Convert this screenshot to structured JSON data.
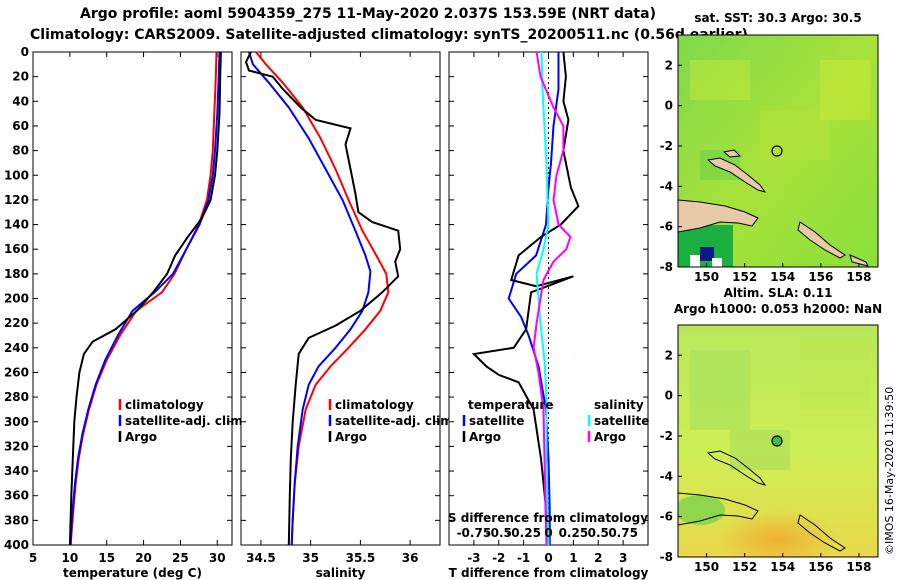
{
  "header": {
    "line1": "Argo profile: aoml 5904359_275 11-May-2020 2.037S 153.59E (NRT data)",
    "line2": "Climatology: CARS2009. Satellite-adjusted climatology: synTS_20200511.nc (0.56d earlier)"
  },
  "colors": {
    "climatology": "#ff0000",
    "satellite": "#0000ff",
    "argo": "#000000",
    "t_satellite": "#0000ff",
    "s_satellite": "#00ffff",
    "s_argo": "#ff00ff"
  },
  "chart_data": [
    {
      "type": "line",
      "id": "temperature",
      "xlabel": "temperature (deg C)",
      "ylabel": "",
      "xlim": [
        5,
        32
      ],
      "ylim": [
        400,
        0
      ],
      "xticks": [
        "5",
        "10",
        "15",
        "20",
        "25",
        "30"
      ],
      "xtick_values": [
        5,
        10,
        15,
        20,
        25,
        30
      ],
      "yticks": [
        "0",
        "20",
        "40",
        "60",
        "80",
        "100",
        "120",
        "140",
        "160",
        "180",
        "200",
        "220",
        "240",
        "260",
        "280",
        "300",
        "320",
        "340",
        "360",
        "380",
        "400"
      ],
      "ytick_values": [
        0,
        20,
        40,
        60,
        80,
        100,
        120,
        140,
        160,
        180,
        200,
        220,
        240,
        260,
        280,
        300,
        320,
        340,
        360,
        380,
        400
      ],
      "legend": [
        "climatology",
        "satellite-adj. clim.",
        "Argo"
      ],
      "series": [
        {
          "name": "climatology",
          "color": "#ff0000",
          "points": [
            [
              29.9,
              0
            ],
            [
              29.8,
              20
            ],
            [
              29.6,
              50
            ],
            [
              29.4,
              80
            ],
            [
              29.1,
              100
            ],
            [
              28.6,
              120
            ],
            [
              27.5,
              140
            ],
            [
              25.8,
              160
            ],
            [
              24.2,
              180
            ],
            [
              22.5,
              195
            ],
            [
              19,
              210
            ],
            [
              16.8,
              230
            ],
            [
              15,
              250
            ],
            [
              13.6,
              270
            ],
            [
              12.6,
              290
            ],
            [
              11.8,
              310
            ],
            [
              11.2,
              330
            ],
            [
              10.8,
              350
            ],
            [
              10.5,
              370
            ],
            [
              10.3,
              385
            ],
            [
              10.1,
              400
            ]
          ]
        },
        {
          "name": "satellite-adj. clim.",
          "color": "#0000ff",
          "points": [
            [
              30.3,
              0
            ],
            [
              30.2,
              20
            ],
            [
              30,
              50
            ],
            [
              29.7,
              80
            ],
            [
              29.4,
              100
            ],
            [
              28.8,
              120
            ],
            [
              27.6,
              140
            ],
            [
              25.8,
              160
            ],
            [
              24,
              180
            ],
            [
              21.5,
              195
            ],
            [
              18.5,
              210
            ],
            [
              16.5,
              230
            ],
            [
              14.8,
              250
            ],
            [
              13.5,
              270
            ],
            [
              12.5,
              290
            ],
            [
              11.7,
              310
            ],
            [
              11.1,
              330
            ],
            [
              10.7,
              350
            ],
            [
              10.4,
              370
            ],
            [
              10.2,
              385
            ],
            [
              10.1,
              400
            ]
          ]
        },
        {
          "name": "Argo",
          "color": "#000000",
          "points": [
            [
              30.5,
              0
            ],
            [
              30.4,
              20
            ],
            [
              30.3,
              50
            ],
            [
              30,
              80
            ],
            [
              29.7,
              100
            ],
            [
              29.1,
              120
            ],
            [
              27.9,
              135
            ],
            [
              26,
              150
            ],
            [
              24.3,
              165
            ],
            [
              23.2,
              180
            ],
            [
              21.3,
              195
            ],
            [
              19.1,
              210
            ],
            [
              16.2,
              225
            ],
            [
              13.1,
              235
            ],
            [
              11.9,
              245
            ],
            [
              11.3,
              260
            ],
            [
              10.9,
              280
            ],
            [
              10.6,
              300
            ],
            [
              10.4,
              330
            ],
            [
              10.2,
              360
            ],
            [
              10.1,
              380
            ],
            [
              10,
              400
            ]
          ]
        }
      ]
    },
    {
      "type": "line",
      "id": "salinity",
      "xlabel": "salinity",
      "ylabel": "",
      "xlim": [
        34.3,
        36.3
      ],
      "ylim": [
        400,
        0
      ],
      "xticks": [
        "34.5",
        "35",
        "35.5",
        "36"
      ],
      "xtick_values": [
        34.5,
        35,
        35.5,
        36
      ],
      "legend": [
        "climatology",
        "satellite-adj. clim.",
        "Argo"
      ],
      "series": [
        {
          "name": "climatology",
          "color": "#ff0000",
          "points": [
            [
              34.45,
              0
            ],
            [
              34.55,
              10
            ],
            [
              34.72,
              25
            ],
            [
              34.92,
              45
            ],
            [
              35.1,
              70
            ],
            [
              35.25,
              95
            ],
            [
              35.38,
              120
            ],
            [
              35.52,
              145
            ],
            [
              35.66,
              165
            ],
            [
              35.76,
              180
            ],
            [
              35.78,
              195
            ],
            [
              35.7,
              210
            ],
            [
              35.55,
              225
            ],
            [
              35.38,
              240
            ],
            [
              35.2,
              255
            ],
            [
              35.05,
              270
            ],
            [
              34.95,
              290
            ],
            [
              34.88,
              320
            ],
            [
              34.84,
              350
            ],
            [
              34.82,
              380
            ],
            [
              34.81,
              400
            ]
          ]
        },
        {
          "name": "satellite-adj. clim.",
          "color": "#0000ff",
          "points": [
            [
              34.38,
              0
            ],
            [
              34.42,
              10
            ],
            [
              34.58,
              25
            ],
            [
              34.78,
              45
            ],
            [
              34.98,
              70
            ],
            [
              35.15,
              95
            ],
            [
              35.32,
              120
            ],
            [
              35.45,
              145
            ],
            [
              35.55,
              165
            ],
            [
              35.6,
              178
            ],
            [
              35.58,
              195
            ],
            [
              35.52,
              210
            ],
            [
              35.4,
              225
            ],
            [
              35.25,
              240
            ],
            [
              35.08,
              255
            ],
            [
              34.98,
              270
            ],
            [
              34.92,
              290
            ],
            [
              34.87,
              320
            ],
            [
              34.84,
              350
            ],
            [
              34.82,
              380
            ],
            [
              34.81,
              400
            ]
          ]
        },
        {
          "name": "Argo",
          "color": "#000000",
          "points": [
            [
              34.4,
              0
            ],
            [
              34.35,
              8
            ],
            [
              34.38,
              15
            ],
            [
              34.62,
              20
            ],
            [
              34.72,
              30
            ],
            [
              34.9,
              45
            ],
            [
              35.05,
              55
            ],
            [
              35.4,
              62
            ],
            [
              35.35,
              75
            ],
            [
              35.4,
              95
            ],
            [
              35.45,
              115
            ],
            [
              35.48,
              130
            ],
            [
              35.62,
              138
            ],
            [
              35.88,
              145
            ],
            [
              35.9,
              160
            ],
            [
              35.85,
              170
            ],
            [
              35.88,
              182
            ],
            [
              35.72,
              195
            ],
            [
              35.5,
              210
            ],
            [
              35.25,
              222
            ],
            [
              34.98,
              232
            ],
            [
              34.88,
              245
            ],
            [
              34.85,
              270
            ],
            [
              34.82,
              300
            ],
            [
              34.8,
              330
            ],
            [
              34.79,
              360
            ],
            [
              34.78,
              400
            ]
          ]
        }
      ]
    },
    {
      "type": "line",
      "id": "difference",
      "xlabel": "T difference from climatology",
      "xlabel2": "S difference from climatology",
      "xlim": [
        -4,
        4
      ],
      "ylim": [
        400,
        0
      ],
      "xticks": [
        "-3",
        "-2",
        "-1",
        "0",
        "1",
        "2",
        "3"
      ],
      "xtick_values": [
        -3,
        -2,
        -1,
        0,
        1,
        2,
        3
      ],
      "xticks_top": [
        "-0.75",
        "-0.5",
        "-0.25",
        "0",
        "0.25",
        "0.5",
        "0.75"
      ],
      "legend_left_title": "temperature",
      "legend_left": [
        "satellite",
        "Argo"
      ],
      "legend_right_title": "salinity",
      "legend_right": [
        "satellite",
        "Argo"
      ],
      "series": [
        {
          "name": "T satellite",
          "color": "#0000ff",
          "points": [
            [
              0.4,
              0
            ],
            [
              0.4,
              30
            ],
            [
              0.2,
              60
            ],
            [
              0.1,
              90
            ],
            [
              0,
              110
            ],
            [
              -0.1,
              140
            ],
            [
              -0.5,
              165
            ],
            [
              -1.3,
              180
            ],
            [
              -1.6,
              200
            ],
            [
              -1.1,
              215
            ],
            [
              -0.8,
              230
            ],
            [
              -0.4,
              255
            ],
            [
              -0.1,
              290
            ],
            [
              0,
              330
            ],
            [
              0.05,
              370
            ],
            [
              0.05,
              400
            ]
          ]
        },
        {
          "name": "T Argo",
          "color": "#000000",
          "points": [
            [
              0.6,
              0
            ],
            [
              0.7,
              20
            ],
            [
              0.6,
              40
            ],
            [
              0.8,
              55
            ],
            [
              0.6,
              80
            ],
            [
              0.8,
              100
            ],
            [
              0.9,
              110
            ],
            [
              1.2,
              125
            ],
            [
              0.5,
              140
            ],
            [
              -0.3,
              150
            ],
            [
              -1.2,
              165
            ],
            [
              -1.5,
              185
            ],
            [
              -0.5,
              190
            ],
            [
              1,
              182
            ],
            [
              -0.7,
              195
            ],
            [
              -0.9,
              225
            ],
            [
              -1.4,
              240
            ],
            [
              -3.0,
              245
            ],
            [
              -2.5,
              255
            ],
            [
              -2,
              262
            ],
            [
              -1.2,
              268
            ],
            [
              -0.6,
              290
            ],
            [
              -0.3,
              330
            ],
            [
              -0.1,
              370
            ],
            [
              0,
              400
            ]
          ]
        },
        {
          "name": "S satellite",
          "color": "#00ffff",
          "points": [
            [
              -0.07,
              0
            ],
            [
              -0.06,
              30
            ],
            [
              -0.04,
              60
            ],
            [
              -0.02,
              90
            ],
            [
              -0.01,
              120
            ],
            [
              0,
              140
            ],
            [
              -0.05,
              160
            ],
            [
              -0.12,
              180
            ],
            [
              -0.1,
              200
            ],
            [
              -0.08,
              220
            ],
            [
              -0.04,
              250
            ],
            [
              -0.02,
              280
            ],
            [
              -0.02,
              330
            ],
            [
              -0.01,
              370
            ],
            [
              0,
              400
            ]
          ]
        },
        {
          "name": "S Argo",
          "color": "#ff00ff",
          "points": [
            [
              -0.12,
              0
            ],
            [
              -0.08,
              20
            ],
            [
              0.05,
              45
            ],
            [
              0.15,
              60
            ],
            [
              0.15,
              80
            ],
            [
              0.08,
              100
            ],
            [
              0.05,
              120
            ],
            [
              0.1,
              140
            ],
            [
              0.22,
              150
            ],
            [
              0.18,
              160
            ],
            [
              0.05,
              170
            ],
            [
              -0.05,
              185
            ],
            [
              -0.08,
              200
            ],
            [
              -0.12,
              220
            ],
            [
              -0.15,
              240
            ],
            [
              -0.1,
              260
            ],
            [
              -0.05,
              290
            ],
            [
              -0.04,
              330
            ],
            [
              -0.03,
              370
            ],
            [
              -0.02,
              400
            ]
          ]
        }
      ]
    },
    {
      "type": "heatmap",
      "id": "sst-map",
      "title": "sat. SST: 30.3 Argo: 30.5",
      "xlim": [
        148.5,
        159
      ],
      "ylim": [
        -8,
        3.5
      ],
      "xticks": [
        "150",
        "152",
        "154",
        "156",
        "158"
      ],
      "xtick_values": [
        150,
        152,
        154,
        156,
        158
      ],
      "yticks": [
        "2",
        "0",
        "-2",
        "-4",
        "-6",
        "-8"
      ],
      "ytick_values": [
        2,
        0,
        -2,
        -4,
        -6,
        -8
      ],
      "argo_position": [
        153.59,
        -2.037
      ]
    },
    {
      "type": "heatmap",
      "id": "sla-map",
      "title_line1": "Altim. SLA: 0.11",
      "title_line2": "Argo h1000: 0.053 h2000: NaN",
      "xlim": [
        148.5,
        159
      ],
      "ylim": [
        -8,
        3.5
      ],
      "xticks": [
        "150",
        "152",
        "154",
        "156",
        "158"
      ],
      "xtick_values": [
        150,
        152,
        154,
        156,
        158
      ],
      "yticks": [
        "2",
        "0",
        "-2",
        "-4",
        "-6",
        "-8"
      ],
      "ytick_values": [
        2,
        0,
        -2,
        -4,
        -6,
        -8
      ],
      "argo_position": [
        153.59,
        -2.037
      ]
    }
  ],
  "stamp": "©IMOS 16-May-2020 11:39:50"
}
